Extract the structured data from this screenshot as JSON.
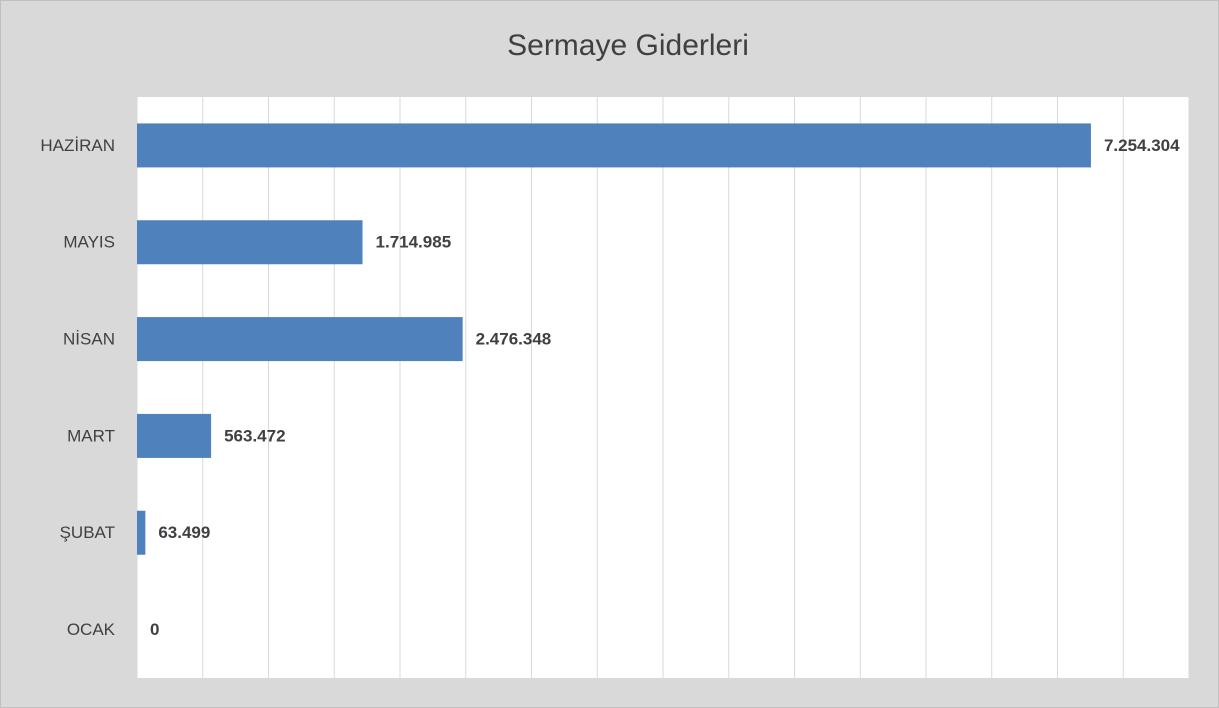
{
  "chart_data": {
    "type": "barh",
    "title": "Sermaye Giderleri",
    "categories": [
      "OCAK",
      "ŞUBAT",
      "MART",
      "NİSAN",
      "MAYIS",
      "HAZİRAN"
    ],
    "values": [
      0,
      63499,
      563472,
      2476348,
      1714985,
      7254304
    ],
    "value_labels": [
      "0",
      "63.499",
      "563.472",
      "2.476.348",
      "1.714.985",
      "7.254.304"
    ],
    "color": "#4f81bd",
    "xlim": [
      0,
      8000000
    ],
    "xticks": [
      0,
      500000,
      1000000,
      1500000,
      2000000,
      2500000,
      3000000,
      3500000,
      4000000,
      4500000,
      5000000,
      5500000,
      6000000,
      6500000,
      7000000,
      7500000,
      8000000
    ],
    "grid": true
  }
}
